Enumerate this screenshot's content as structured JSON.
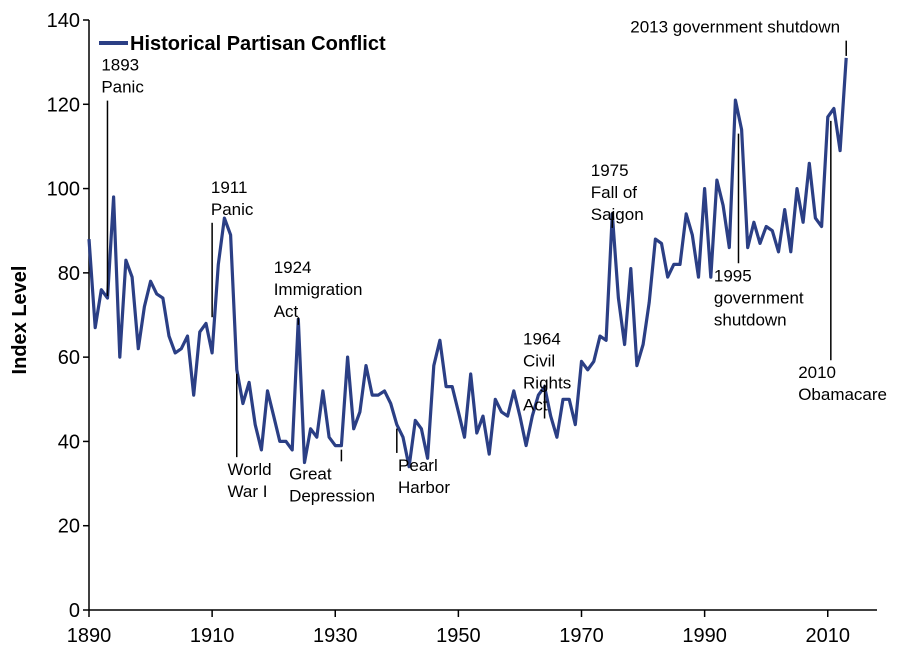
{
  "chart_data": {
    "type": "line",
    "title": "",
    "xlabel": "",
    "ylabel": "Index Level",
    "xlim": [
      1890,
      2018
    ],
    "ylim": [
      0,
      140
    ],
    "xticks": [
      1890,
      1910,
      1930,
      1950,
      1970,
      1990,
      2010
    ],
    "yticks": [
      0,
      20,
      40,
      60,
      80,
      100,
      120,
      140
    ],
    "grid": false,
    "legend_position": "top-left",
    "series": [
      {
        "name": "Historical Partisan Conflict",
        "color": "#2b3f85",
        "x": [
          1890,
          1891,
          1892,
          1893,
          1894,
          1895,
          1896,
          1897,
          1898,
          1899,
          1900,
          1901,
          1902,
          1903,
          1904,
          1905,
          1906,
          1907,
          1908,
          1909,
          1910,
          1911,
          1912,
          1913,
          1914,
          1915,
          1916,
          1917,
          1918,
          1919,
          1920,
          1921,
          1922,
          1923,
          1924,
          1925,
          1926,
          1927,
          1928,
          1929,
          1930,
          1931,
          1932,
          1933,
          1934,
          1935,
          1936,
          1937,
          1938,
          1939,
          1940,
          1941,
          1942,
          1943,
          1944,
          1945,
          1946,
          1947,
          1948,
          1949,
          1950,
          1951,
          1952,
          1953,
          1954,
          1955,
          1956,
          1957,
          1958,
          1959,
          1960,
          1961,
          1962,
          1963,
          1964,
          1965,
          1966,
          1967,
          1968,
          1969,
          1970,
          1971,
          1972,
          1973,
          1974,
          1975,
          1976,
          1977,
          1978,
          1979,
          1980,
          1981,
          1982,
          1983,
          1984,
          1985,
          1986,
          1987,
          1988,
          1989,
          1990,
          1991,
          1992,
          1993,
          1994,
          1995,
          1996,
          1997,
          1998,
          1999,
          2000,
          2001,
          2002,
          2003,
          2004,
          2005,
          2006,
          2007,
          2008,
          2009,
          2010,
          2011,
          2012,
          2013
        ],
        "values": [
          88,
          67,
          76,
          74,
          98,
          60,
          83,
          79,
          62,
          72,
          78,
          75,
          74,
          65,
          61,
          62,
          65,
          51,
          66,
          68,
          61,
          82,
          93,
          89,
          57,
          49,
          54,
          44,
          38,
          52,
          46,
          40,
          40,
          38,
          69,
          35,
          43,
          41,
          52,
          41,
          39,
          39,
          60,
          43,
          47,
          58,
          51,
          51,
          52,
          49,
          44,
          41,
          34,
          45,
          43,
          36,
          58,
          64,
          53,
          53,
          47,
          41,
          56,
          42,
          46,
          37,
          50,
          47,
          46,
          52,
          46,
          39,
          46,
          51,
          53,
          46,
          41,
          50,
          50,
          44,
          59,
          57,
          59,
          65,
          64,
          94,
          74,
          63,
          81,
          58,
          63,
          73,
          88,
          87,
          79,
          82,
          82,
          94,
          89,
          79,
          100,
          79,
          102,
          96,
          86,
          121,
          114,
          86,
          92,
          87,
          91,
          90,
          85,
          95,
          85,
          100,
          92,
          106,
          93,
          91,
          117,
          119,
          109,
          131
        ]
      }
    ],
    "annotations": [
      {
        "id": "ann-1893",
        "lines": [
          "1893",
          "Panic"
        ],
        "x": 1893,
        "y": 74,
        "side": "above",
        "text_y": 128,
        "label_x": 1892,
        "anchor": "start"
      },
      {
        "id": "ann-1911",
        "lines": [
          "1911",
          "Panic"
        ],
        "x": 1910,
        "y": 69,
        "side": "above",
        "text_y": 99,
        "label_x": 1909.8,
        "anchor": "start"
      },
      {
        "id": "ann-1924",
        "lines": [
          "1924",
          "Immigration",
          "Act"
        ],
        "x": 1924,
        "y": 69,
        "side": "above",
        "text_y": 80,
        "label_x": 1920,
        "anchor": "start"
      },
      {
        "id": "ann-1964",
        "lines": [
          "1964",
          "Civil",
          "Rights",
          "Act"
        ],
        "x": 1964,
        "y": 53,
        "side": "above",
        "text_y": 63,
        "label_x": 1960.5,
        "anchor": "start"
      },
      {
        "id": "ann-1975",
        "lines": [
          "1975",
          "Fall of",
          "Saigon"
        ],
        "x": 1975,
        "y": 94,
        "side": "above",
        "text_y": 103,
        "label_x": 1971.5,
        "anchor": "start"
      },
      {
        "id": "ann-2013",
        "lines": [
          "2013 government  shutdown"
        ],
        "x": 2013,
        "y": 131,
        "side": "above",
        "text_y": 137,
        "label_x": 2012,
        "anchor": "end"
      },
      {
        "id": "ann-ww1",
        "lines": [
          "World",
          "War I"
        ],
        "x": 1914,
        "y": 57,
        "side": "below",
        "text_y": 32,
        "label_x": 1912.5,
        "anchor": "start"
      },
      {
        "id": "ann-depression",
        "lines": [
          "Great",
          "Depression"
        ],
        "x": 1931,
        "y": 39,
        "side": "below",
        "text_y": 31,
        "label_x": 1922.5,
        "anchor": "start"
      },
      {
        "id": "ann-pearl",
        "lines": [
          "Pearl",
          "Harbor"
        ],
        "x": 1940,
        "y": 44,
        "side": "below",
        "text_y": 33,
        "label_x": 1940.2,
        "anchor": "start"
      },
      {
        "id": "ann-1995",
        "lines": [
          "1995",
          "government",
          "shutdown"
        ],
        "x": 1995.5,
        "y": 114,
        "side": "below",
        "text_y": 78,
        "label_x": 1991.5,
        "anchor": "start"
      },
      {
        "id": "ann-2010",
        "lines": [
          "2010",
          "Obamacare"
        ],
        "x": 2010.5,
        "y": 117,
        "side": "below",
        "text_y": 55,
        "label_x": 2005.2,
        "anchor": "start"
      }
    ]
  }
}
